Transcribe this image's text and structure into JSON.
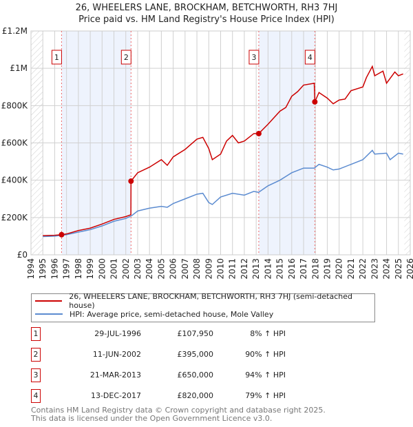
{
  "chart_data": {
    "type": "line",
    "title": "26, WHEELERS LANE, BROCKHAM, BETCHWORTH, RH3 7HJ",
    "subtitle": "Price paid vs. HM Land Registry's House Price Index (HPI)",
    "xlim": [
      1994,
      2026
    ],
    "ylim": [
      0,
      1200000
    ],
    "y_ticks": [
      {
        "v": 0,
        "label": "£0"
      },
      {
        "v": 200000,
        "label": "£200K"
      },
      {
        "v": 400000,
        "label": "£400K"
      },
      {
        "v": 600000,
        "label": "£600K"
      },
      {
        "v": 800000,
        "label": "£800K"
      },
      {
        "v": 1000000,
        "label": "£1M"
      },
      {
        "v": 1200000,
        "label": "£1.2M"
      }
    ],
    "x_ticks": [
      "1994",
      "1995",
      "1996",
      "1997",
      "1998",
      "1999",
      "2000",
      "2001",
      "2002",
      "2003",
      "2004",
      "2005",
      "2006",
      "2007",
      "2008",
      "2009",
      "2010",
      "2011",
      "2012",
      "2013",
      "2014",
      "2015",
      "2016",
      "2017",
      "2018",
      "2019",
      "2020",
      "2021",
      "2022",
      "2023",
      "2024",
      "2025",
      "2026"
    ],
    "grid": true,
    "series": [
      {
        "name": "26, WHEELERS LANE, BROCKHAM, BETCHWORTH, RH3 7HJ (semi-detached house)",
        "color": "#cc0000",
        "points": [
          [
            1995,
            103000
          ],
          [
            1996,
            105000
          ],
          [
            1996.58,
            107950
          ],
          [
            1997,
            112000
          ],
          [
            1998,
            130000
          ],
          [
            1999,
            143000
          ],
          [
            2000,
            165000
          ],
          [
            2001,
            190000
          ],
          [
            2002,
            205000
          ],
          [
            2002.43,
            215000
          ],
          [
            2002.44,
            395000
          ],
          [
            2003,
            440000
          ],
          [
            2004,
            470000
          ],
          [
            2005,
            510000
          ],
          [
            2005.5,
            480000
          ],
          [
            2006,
            525000
          ],
          [
            2007,
            565000
          ],
          [
            2008,
            620000
          ],
          [
            2008.5,
            630000
          ],
          [
            2009,
            570000
          ],
          [
            2009.3,
            510000
          ],
          [
            2010,
            540000
          ],
          [
            2010.5,
            610000
          ],
          [
            2011,
            640000
          ],
          [
            2011.5,
            600000
          ],
          [
            2012,
            610000
          ],
          [
            2012.8,
            650000
          ],
          [
            2013.22,
            650000
          ],
          [
            2014,
            700000
          ],
          [
            2015,
            770000
          ],
          [
            2015.5,
            790000
          ],
          [
            2016,
            850000
          ],
          [
            2016.5,
            875000
          ],
          [
            2017,
            910000
          ],
          [
            2017.9,
            920000
          ],
          [
            2017.95,
            820000
          ],
          [
            2018.3,
            870000
          ],
          [
            2019,
            840000
          ],
          [
            2019.5,
            810000
          ],
          [
            2020,
            830000
          ],
          [
            2020.5,
            835000
          ],
          [
            2021,
            880000
          ],
          [
            2022,
            900000
          ],
          [
            2022.3,
            950000
          ],
          [
            2022.8,
            1010000
          ],
          [
            2023,
            960000
          ],
          [
            2023.7,
            985000
          ],
          [
            2024,
            920000
          ],
          [
            2024.7,
            980000
          ],
          [
            2025,
            960000
          ],
          [
            2025.4,
            970000
          ]
        ]
      },
      {
        "name": "HPI: Average price, semi-detached house, Mole Valley",
        "color": "#5b8bd0",
        "points": [
          [
            1995,
            98000
          ],
          [
            1996,
            100000
          ],
          [
            1997,
            108000
          ],
          [
            1998,
            122000
          ],
          [
            1999,
            135000
          ],
          [
            2000,
            155000
          ],
          [
            2001,
            180000
          ],
          [
            2002,
            195000
          ],
          [
            2002.5,
            210000
          ],
          [
            2003,
            235000
          ],
          [
            2004,
            250000
          ],
          [
            2005,
            260000
          ],
          [
            2005.5,
            255000
          ],
          [
            2006,
            275000
          ],
          [
            2007,
            300000
          ],
          [
            2008,
            325000
          ],
          [
            2008.5,
            330000
          ],
          [
            2009,
            280000
          ],
          [
            2009.3,
            270000
          ],
          [
            2010,
            310000
          ],
          [
            2011,
            330000
          ],
          [
            2012,
            320000
          ],
          [
            2012.8,
            340000
          ],
          [
            2013.2,
            335000
          ],
          [
            2014,
            370000
          ],
          [
            2015,
            400000
          ],
          [
            2016,
            440000
          ],
          [
            2017,
            465000
          ],
          [
            2017.9,
            465000
          ],
          [
            2018.3,
            485000
          ],
          [
            2019,
            470000
          ],
          [
            2019.5,
            455000
          ],
          [
            2020,
            460000
          ],
          [
            2021,
            485000
          ],
          [
            2022,
            510000
          ],
          [
            2022.8,
            560000
          ],
          [
            2023,
            540000
          ],
          [
            2024,
            545000
          ],
          [
            2024.3,
            510000
          ],
          [
            2025,
            545000
          ],
          [
            2025.4,
            540000
          ]
        ]
      }
    ],
    "sales": [
      {
        "n": "1",
        "x": 1996.58,
        "y": 107950,
        "date": "29-JUL-1996",
        "price": "£107,950",
        "hpi": "8% ↑ HPI"
      },
      {
        "n": "2",
        "x": 2002.44,
        "y": 395000,
        "date": "11-JUN-2002",
        "price": "£395,000",
        "hpi": "90% ↑ HPI"
      },
      {
        "n": "3",
        "x": 2013.22,
        "y": 650000,
        "date": "21-MAR-2013",
        "price": "£650,000",
        "hpi": "94% ↑ HPI"
      },
      {
        "n": "4",
        "x": 2017.95,
        "y": 820000,
        "date": "13-DEC-2017",
        "price": "£820,000",
        "hpi": "79% ↑ HPI"
      }
    ],
    "shaded_ranges": [
      [
        1996.58,
        2002.44
      ],
      [
        2013.22,
        2017.95
      ]
    ],
    "hatched_ranges": [
      [
        1994,
        1995
      ],
      [
        2025.5,
        2026
      ]
    ],
    "legend_placement": "bottom"
  },
  "footer": {
    "line1": "Contains HM Land Registry data © Crown copyright and database right 2025.",
    "line2": "This data is licensed under the Open Government Licence v3.0."
  }
}
